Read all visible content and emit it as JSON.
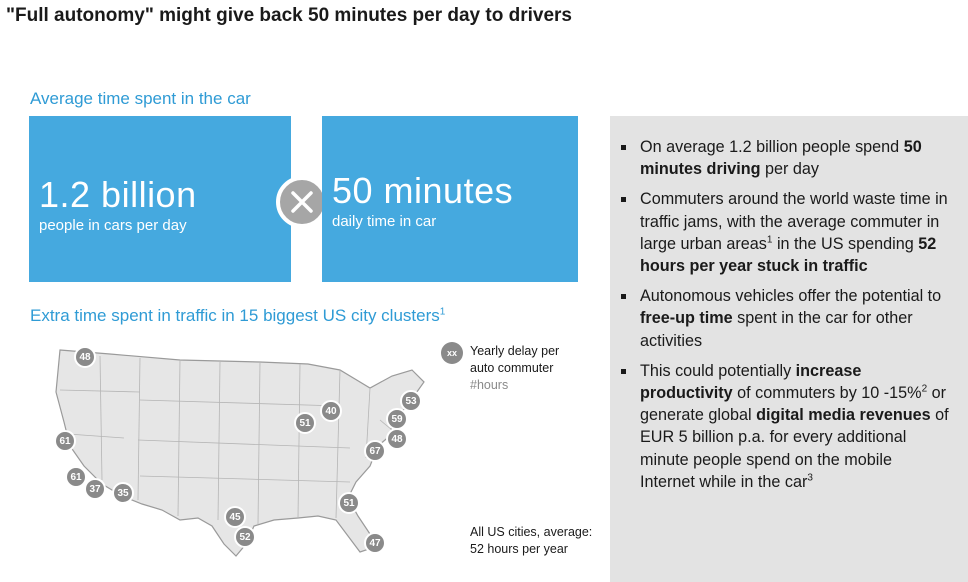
{
  "title": "\"Full autonomy\" might give back 50 minutes per day to drivers",
  "avg_section": {
    "heading": "Average time spent in the car",
    "people_value": "1.2 billion",
    "people_label": "people in cars per day",
    "operator": "times-icon",
    "minutes_value": "50 minutes",
    "minutes_label": "daily time in car"
  },
  "traffic_section": {
    "heading": "Extra time spent in traffic in 15 biggest US city clusters",
    "heading_sup": "1",
    "legend": {
      "pin_label": "xx",
      "line1": "Yearly delay per",
      "line2": "auto commuter",
      "unit": "#hours"
    },
    "footnote_line1": "All US cities, average:",
    "footnote_line2": "52 hours per year",
    "pins": [
      "48",
      "61",
      "61",
      "37",
      "35",
      "51",
      "40",
      "53",
      "59",
      "48",
      "67",
      "51",
      "45",
      "52",
      "47"
    ]
  },
  "bullets": [
    {
      "parts": [
        "On average 1.2 billion people spend ",
        "50 minutes driving",
        " per day"
      ]
    },
    {
      "parts": [
        "Commuters around the world waste time in traffic jams, with the average commuter in large urban areas",
        "1",
        " in the US spending ",
        "52 hours per year stuck in traffic"
      ]
    },
    {
      "parts": [
        "Autonomous vehicles offer the potential to ",
        "free-up time",
        " spent in the car for other activities"
      ]
    },
    {
      "parts": [
        "This could potentially ",
        "increase productivity",
        " of commuters by 10 -15%",
        "2",
        " or generate global ",
        "digital media revenues",
        " of EUR 5 billion p.a. for every additional minute people spend on the mobile Internet while in the car",
        "3"
      ]
    }
  ]
}
